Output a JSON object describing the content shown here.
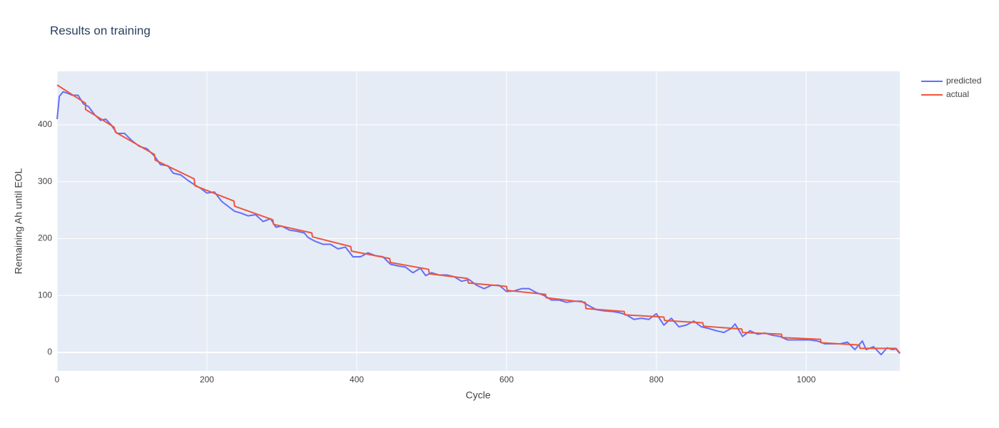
{
  "chart_data": {
    "type": "line",
    "title": "Results on training",
    "x_label": "Cycle",
    "y_label": "Remaining Ah until EOL",
    "xlim": [
      0,
      1125
    ],
    "ylim": [
      -32.6,
      494
    ],
    "xticks": [
      0,
      200,
      400,
      600,
      800,
      1000
    ],
    "yticks": [
      0,
      100,
      200,
      300,
      400
    ],
    "grid": true,
    "series": [
      {
        "name": "predicted",
        "color": "#636efa",
        "x": [
          0,
          3,
          8,
          15,
          20,
          28,
          35,
          42,
          50,
          58,
          65,
          72,
          80,
          90,
          100,
          110,
          120,
          130,
          138,
          148,
          155,
          165,
          175,
          183,
          192,
          200,
          210,
          220,
          230,
          237,
          245,
          255,
          265,
          275,
          285,
          292,
          300,
          310,
          320,
          330,
          335,
          345,
          355,
          365,
          375,
          385,
          395,
          405,
          415,
          425,
          435,
          445,
          455,
          465,
          475,
          485,
          492,
          500,
          510,
          520,
          530,
          540,
          550,
          560,
          570,
          580,
          590,
          600,
          610,
          620,
          630,
          640,
          650,
          660,
          670,
          680,
          690,
          700,
          710,
          720,
          730,
          740,
          750,
          760,
          770,
          780,
          790,
          800,
          810,
          820,
          830,
          840,
          850,
          860,
          870,
          880,
          890,
          900,
          905,
          915,
          925,
          935,
          945,
          955,
          965,
          975,
          985,
          995,
          1005,
          1015,
          1025,
          1035,
          1045,
          1055,
          1065,
          1075,
          1080,
          1090,
          1100,
          1108,
          1115,
          1120,
          1125
        ],
        "values": [
          410,
          450,
          458,
          455,
          452,
          452,
          437,
          432,
          418,
          408,
          410,
          400,
          385,
          385,
          372,
          362,
          358,
          345,
          330,
          328,
          315,
          312,
          302,
          295,
          288,
          280,
          282,
          265,
          255,
          248,
          245,
          240,
          242,
          230,
          235,
          220,
          222,
          215,
          213,
          210,
          202,
          195,
          190,
          190,
          182,
          185,
          168,
          168,
          175,
          170,
          168,
          155,
          152,
          150,
          140,
          148,
          135,
          140,
          136,
          136,
          133,
          125,
          128,
          118,
          112,
          118,
          118,
          107,
          108,
          112,
          112,
          105,
          100,
          92,
          92,
          88,
          90,
          90,
          82,
          75,
          73,
          72,
          70,
          66,
          58,
          60,
          58,
          68,
          48,
          60,
          45,
          48,
          55,
          45,
          42,
          38,
          35,
          42,
          50,
          28,
          38,
          32,
          34,
          30,
          28,
          22,
          22,
          22,
          22,
          20,
          15,
          15,
          15,
          18,
          5,
          20,
          5,
          10,
          -4,
          8,
          5,
          6,
          -2
        ]
      },
      {
        "name": "actual",
        "color": "#ef553b",
        "x": [
          0,
          38,
          38,
          76,
          78,
          130,
          131,
          183,
          184,
          236,
          237,
          288,
          289,
          340,
          341,
          392,
          393,
          444,
          445,
          496,
          497,
          548,
          549,
          600,
          601,
          652,
          653,
          705,
          706,
          757,
          758,
          810,
          811,
          862,
          863,
          914,
          915,
          967,
          968,
          1019,
          1020,
          1071,
          1072,
          1120,
          1125
        ],
        "values": [
          470,
          438,
          427,
          396,
          387,
          348,
          338,
          305,
          293,
          266,
          257,
          233,
          225,
          210,
          203,
          186,
          178,
          165,
          158,
          146,
          138,
          130,
          122,
          116,
          109,
          102,
          96,
          88,
          77,
          72,
          66,
          62,
          56,
          52,
          46,
          41,
          35,
          32,
          26,
          23,
          17,
          13,
          7,
          7,
          -1
        ]
      }
    ]
  }
}
